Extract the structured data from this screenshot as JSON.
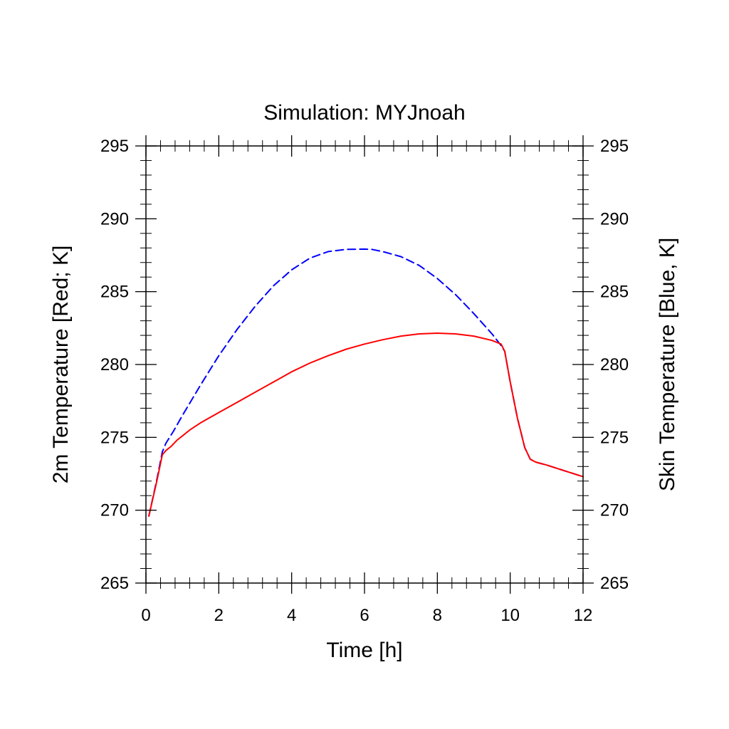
{
  "chart_data": {
    "type": "line",
    "title": "Simulation: MYJnoah",
    "xlabel": "Time [h]",
    "ylabel_left": "2m Temperature [Red; K]",
    "ylabel_right": "Skin Temperature [Blue, K]",
    "xlim": [
      0,
      12
    ],
    "ylim": [
      265,
      295
    ],
    "x_ticks": [
      0,
      2,
      4,
      6,
      8,
      10,
      12
    ],
    "x_tick_labels": [
      "0",
      "2",
      "4",
      "6",
      "8",
      "10",
      "12"
    ],
    "y_ticks": [
      265,
      270,
      275,
      280,
      285,
      290,
      295
    ],
    "y_tick_labels": [
      "265",
      "270",
      "275",
      "280",
      "285",
      "290",
      "295"
    ],
    "grid": false,
    "series": [
      {
        "name": "2m Temperature",
        "color": "#ff0000",
        "style": "solid",
        "axis": "left",
        "x": [
          0.08,
          0.3,
          0.45,
          0.55,
          0.7,
          0.85,
          1.0,
          1.2,
          1.5,
          2.0,
          2.5,
          3.0,
          3.5,
          4.0,
          4.5,
          5.0,
          5.5,
          6.0,
          6.5,
          7.0,
          7.5,
          8.0,
          8.5,
          9.0,
          9.5,
          9.75,
          9.85,
          10.0,
          10.2,
          10.4,
          10.55,
          10.7,
          11.0,
          11.5,
          12.0
        ],
        "y": [
          269.6,
          272.0,
          273.8,
          274.1,
          274.4,
          274.8,
          275.1,
          275.5,
          276.0,
          276.7,
          277.4,
          278.1,
          278.8,
          279.5,
          280.1,
          280.6,
          281.05,
          281.4,
          281.7,
          281.95,
          282.1,
          282.15,
          282.1,
          281.95,
          281.65,
          281.4,
          280.9,
          278.8,
          276.3,
          274.3,
          273.5,
          273.3,
          273.1,
          272.7,
          272.3
        ]
      },
      {
        "name": "Skin Temperature",
        "color": "#0000ff",
        "style": "dashed",
        "axis": "right",
        "x": [
          0.08,
          0.3,
          0.45,
          0.55,
          0.75,
          1.0,
          1.5,
          2.0,
          2.5,
          3.0,
          3.5,
          4.0,
          4.5,
          5.0,
          5.5,
          6.0,
          6.2,
          6.5,
          7.0,
          7.5,
          8.0,
          8.5,
          9.0,
          9.5,
          9.75,
          9.85,
          10.0,
          10.2,
          10.4,
          10.55,
          10.7,
          11.0,
          11.5,
          12.0
        ],
        "y": [
          269.6,
          272.1,
          274.0,
          274.6,
          275.4,
          276.5,
          278.6,
          280.6,
          282.4,
          284.0,
          285.4,
          286.5,
          287.3,
          287.75,
          287.9,
          287.92,
          287.9,
          287.75,
          287.4,
          286.8,
          285.9,
          284.8,
          283.5,
          282.1,
          281.3,
          280.9,
          278.8,
          276.3,
          274.3,
          273.5,
          273.3,
          273.1,
          272.7,
          272.3
        ]
      }
    ]
  }
}
